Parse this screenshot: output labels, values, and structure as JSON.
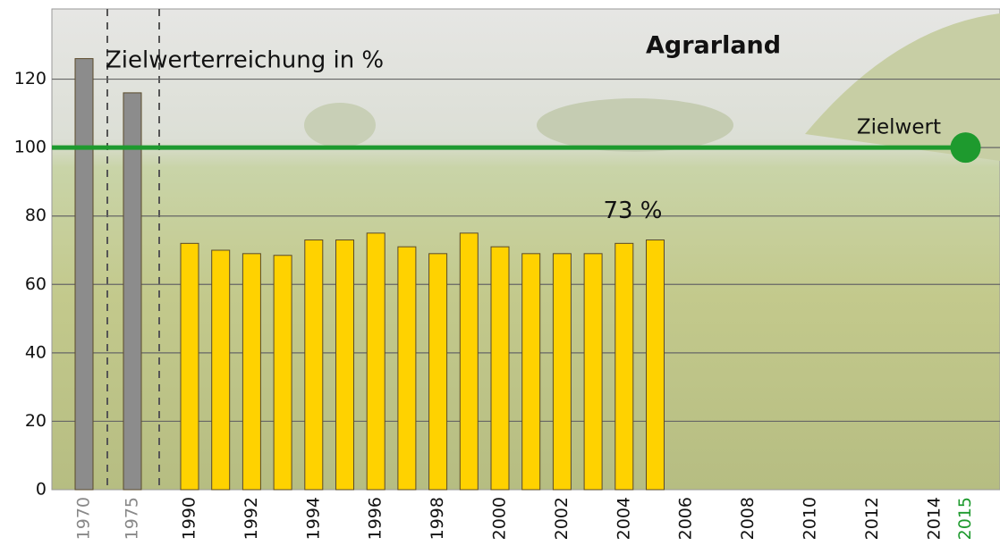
{
  "chart_data": {
    "type": "bar",
    "title": "Agrarland",
    "annotation": "Zielwerterreichung in %",
    "categories": [
      "1970",
      "1975",
      "1990",
      null,
      "1992",
      null,
      "1994",
      null,
      "1996",
      null,
      "1998",
      null,
      "2000",
      null,
      "2002",
      null,
      "2004",
      null,
      "2006",
      null,
      "2008",
      null,
      "2010",
      null,
      "2012",
      null,
      "2014",
      "2015"
    ],
    "category_colors": [
      "#888888",
      "#888888",
      "#111111",
      "#111111",
      "#111111",
      "#111111",
      "#111111",
      "#111111",
      "#111111",
      "#111111",
      "#111111",
      "#111111",
      "#111111",
      "#111111",
      "#111111",
      "#111111",
      "#111111",
      "#111111",
      "#111111",
      "#111111",
      "#111111",
      "#111111",
      "#111111",
      "#111111",
      "#111111",
      "#111111",
      "#111111",
      "#1e9a2e"
    ],
    "values": [
      126,
      116,
      72,
      70,
      69,
      68.5,
      73,
      73,
      75,
      71,
      69,
      75,
      71,
      69,
      69,
      69,
      72,
      73,
      null,
      null,
      null,
      null,
      null,
      null,
      null,
      null,
      null,
      null
    ],
    "value_labels": [
      null,
      null,
      null,
      null,
      null,
      null,
      null,
      null,
      null,
      null,
      null,
      null,
      null,
      null,
      null,
      null,
      null,
      "73 %",
      null,
      null,
      null,
      null,
      null,
      null,
      null,
      null,
      null,
      null
    ],
    "bar_colors": [
      "#8c8c8c",
      "#8c8c8c",
      "#ffd200",
      "#ffd200",
      "#ffd200",
      "#ffd200",
      "#ffd200",
      "#ffd200",
      "#ffd200",
      "#ffd200",
      "#ffd200",
      "#ffd200",
      "#ffd200",
      "#ffd200",
      "#ffd200",
      "#ffd200",
      "#ffd200",
      "#ffd200",
      "#ffd200",
      "#ffd200",
      "#ffd200",
      "#ffd200",
      "#ffd200",
      "#ffd200",
      "#ffd200",
      "#ffd200",
      "#ffd200",
      "#ffd200"
    ],
    "target": {
      "value": 100,
      "label": "Zielwert",
      "color": "#1e9a2e"
    },
    "ylim": [
      0,
      140
    ],
    "yticks": [
      0,
      20,
      40,
      60,
      80,
      100,
      120
    ],
    "grid": true
  }
}
